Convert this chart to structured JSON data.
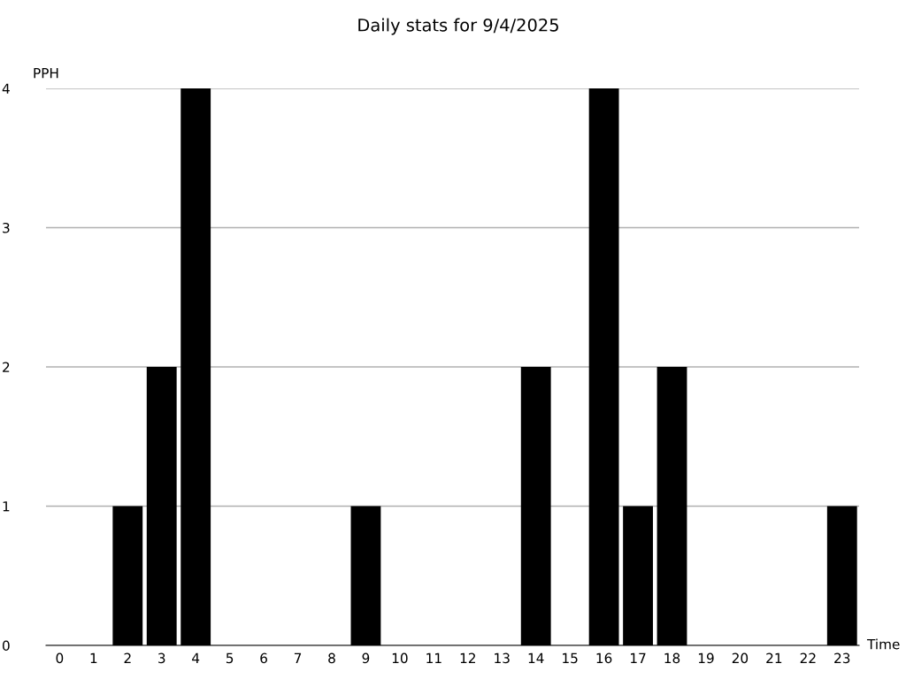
{
  "chart_data": {
    "type": "bar",
    "title": "Daily stats for 9/4/2025",
    "xlabel": "Time",
    "ylabel": "PPH",
    "categories": [
      "0",
      "1",
      "2",
      "3",
      "4",
      "5",
      "6",
      "7",
      "8",
      "9",
      "10",
      "11",
      "12",
      "13",
      "14",
      "15",
      "16",
      "17",
      "18",
      "19",
      "20",
      "21",
      "22",
      "23"
    ],
    "values": [
      0,
      0,
      1,
      2,
      4,
      0,
      0,
      0,
      0,
      1,
      0,
      0,
      0,
      0,
      2,
      0,
      4,
      1,
      2,
      0,
      0,
      0,
      0,
      1
    ],
    "color": "#000000",
    "ylim": [
      0,
      4
    ],
    "yticks": [
      0,
      1,
      2,
      3,
      4
    ],
    "grid": "y"
  }
}
